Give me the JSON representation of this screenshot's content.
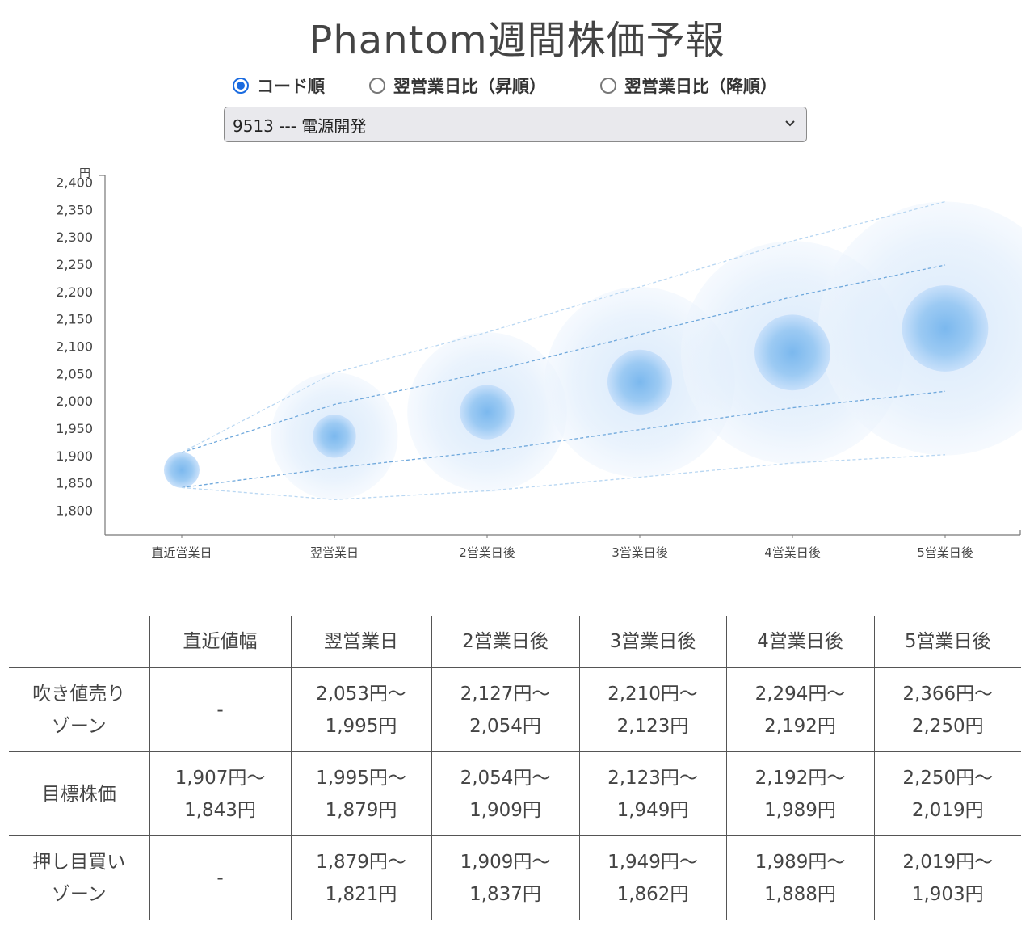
{
  "page": {
    "title": "Phantom週間株価予報"
  },
  "sort_options": [
    {
      "label": "コード順",
      "checked": true
    },
    {
      "label": "翌営業日比（昇順）",
      "checked": false
    },
    {
      "label": "翌営業日比（降順）",
      "checked": false
    }
  ],
  "stock_select": {
    "value": "9513 --- 電源開発"
  },
  "chart_data": {
    "type": "scatter",
    "y_unit": "円",
    "categories": [
      "直近営業日",
      "翌営業日",
      "2営業日後",
      "3営業日後",
      "4営業日後",
      "5営業日後"
    ],
    "y_ticks": [
      "1,800",
      "1,850",
      "1,900",
      "1,950",
      "2,000",
      "2,050",
      "2,100",
      "2,150",
      "2,200",
      "2,250",
      "2,300",
      "2,350",
      "2,400"
    ],
    "ylim": [
      1770,
      2405
    ],
    "grid": false,
    "center": [
      1875,
      1937,
      1981,
      2036,
      2090,
      2134
    ],
    "inner_range": [
      [
        1907,
        1843
      ],
      [
        1995,
        1879
      ],
      [
        2054,
        1909
      ],
      [
        2123,
        1949
      ],
      [
        2192,
        1989
      ],
      [
        2250,
        2019
      ]
    ],
    "outer_range": [
      [
        1907,
        1843
      ],
      [
        2053,
        1821
      ],
      [
        2127,
        1837
      ],
      [
        2210,
        1862
      ],
      [
        2294,
        1888
      ],
      [
        2366,
        1903
      ]
    ],
    "colors": {
      "core": "#7bb8ee",
      "halo": "#d6e8fb",
      "inner_line": "#6fa8dc",
      "outer_line": "#b9d7f2",
      "axis": "#777777"
    }
  },
  "forecast_table": {
    "headers": [
      "",
      "直近値幅",
      "翌営業日",
      "2営業日後",
      "3営業日後",
      "4営業日後",
      "5営業日後"
    ],
    "rows": [
      {
        "label": [
          "吹き値売り",
          "ゾーン"
        ],
        "cells": [
          [
            "-"
          ],
          [
            "2,053円～",
            "1,995円"
          ],
          [
            "2,127円～",
            "2,054円"
          ],
          [
            "2,210円～",
            "2,123円"
          ],
          [
            "2,294円～",
            "2,192円"
          ],
          [
            "2,366円～",
            "2,250円"
          ]
        ]
      },
      {
        "label": [
          "目標株価"
        ],
        "cells": [
          [
            "1,907円～",
            "1,843円"
          ],
          [
            "1,995円～",
            "1,879円"
          ],
          [
            "2,054円～",
            "1,909円"
          ],
          [
            "2,123円～",
            "1,949円"
          ],
          [
            "2,192円～",
            "1,989円"
          ],
          [
            "2,250円～",
            "2,019円"
          ]
        ]
      },
      {
        "label": [
          "押し目買い",
          "ゾーン"
        ],
        "cells": [
          [
            "-"
          ],
          [
            "1,879円～",
            "1,821円"
          ],
          [
            "1,909円～",
            "1,837円"
          ],
          [
            "1,949円～",
            "1,862円"
          ],
          [
            "1,989円～",
            "1,888円"
          ],
          [
            "2,019円～",
            "1,903円"
          ]
        ]
      }
    ]
  }
}
